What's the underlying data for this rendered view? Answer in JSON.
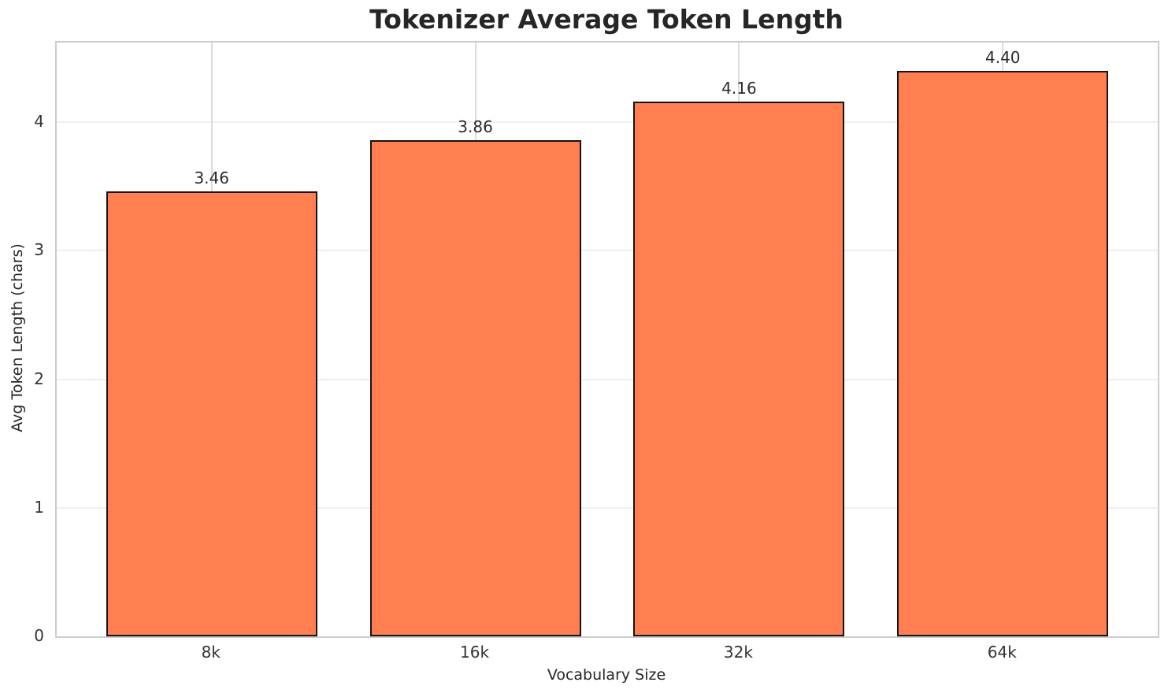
{
  "chart_data": {
    "type": "bar",
    "title": "Tokenizer Average Token Length",
    "xlabel": "Vocabulary Size",
    "ylabel": "Avg Token Length (chars)",
    "categories": [
      "8k",
      "16k",
      "32k",
      "64k"
    ],
    "values": [
      3.46,
      3.86,
      4.16,
      4.4
    ],
    "value_labels": [
      "3.46",
      "3.86",
      "4.16",
      "4.40"
    ],
    "yticks": [
      0,
      1,
      2,
      3,
      4
    ],
    "ylim": [
      0,
      4.62
    ],
    "grid": true,
    "legend": false,
    "bar_color": "#ff7f50",
    "bar_edge_color": "#141414",
    "background_color": "#ffffff",
    "spine_color": "#cccccc"
  }
}
